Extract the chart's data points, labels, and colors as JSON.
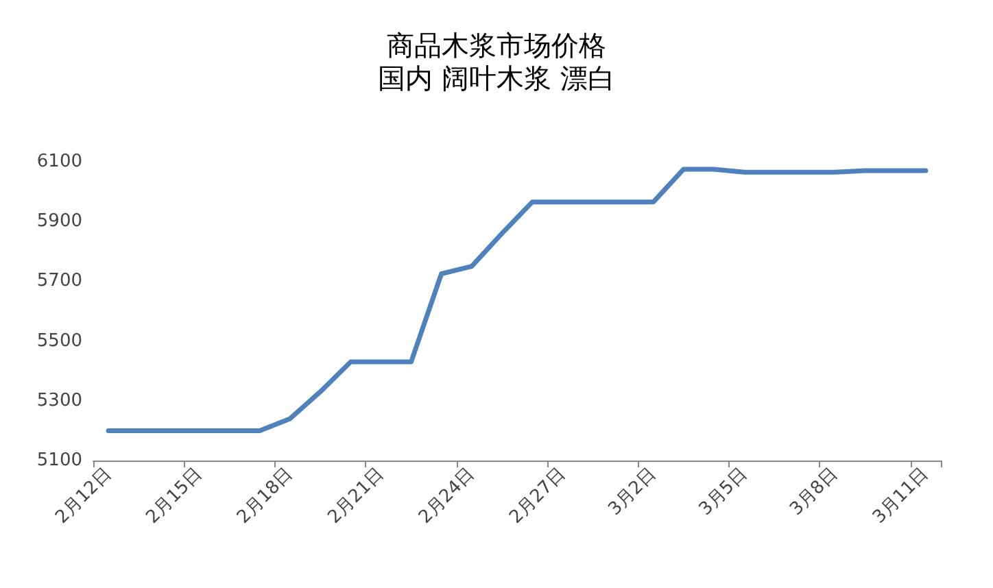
{
  "chart_data": {
    "type": "line",
    "title": "商品木浆市场价格",
    "subtitle": "国内 阔叶木浆 漂白",
    "categories": [
      "2月12日",
      null,
      null,
      "2月15日",
      null,
      null,
      "2月18日",
      null,
      null,
      "2月21日",
      null,
      null,
      "2月24日",
      null,
      null,
      "2月27日",
      null,
      null,
      "3月2日",
      null,
      null,
      "3月5日",
      null,
      null,
      "3月8日",
      null,
      null,
      "3月11日"
    ],
    "series": [
      {
        "color": "#4f81bd",
        "values": [
          5200,
          5200,
          5200,
          5200,
          5200,
          5200,
          5240,
          5330,
          5430,
          5430,
          5430,
          5725,
          5750,
          5860,
          5965,
          5965,
          5965,
          5965,
          5965,
          6075,
          6075,
          6065,
          6065,
          6065,
          6065,
          6070,
          6070,
          6070
        ]
      }
    ],
    "ylim": [
      5100,
      6100
    ],
    "yticks": [
      5100,
      5300,
      5500,
      5700,
      5900,
      6100
    ],
    "grid": false,
    "marker": "none",
    "line_style": "solid"
  }
}
